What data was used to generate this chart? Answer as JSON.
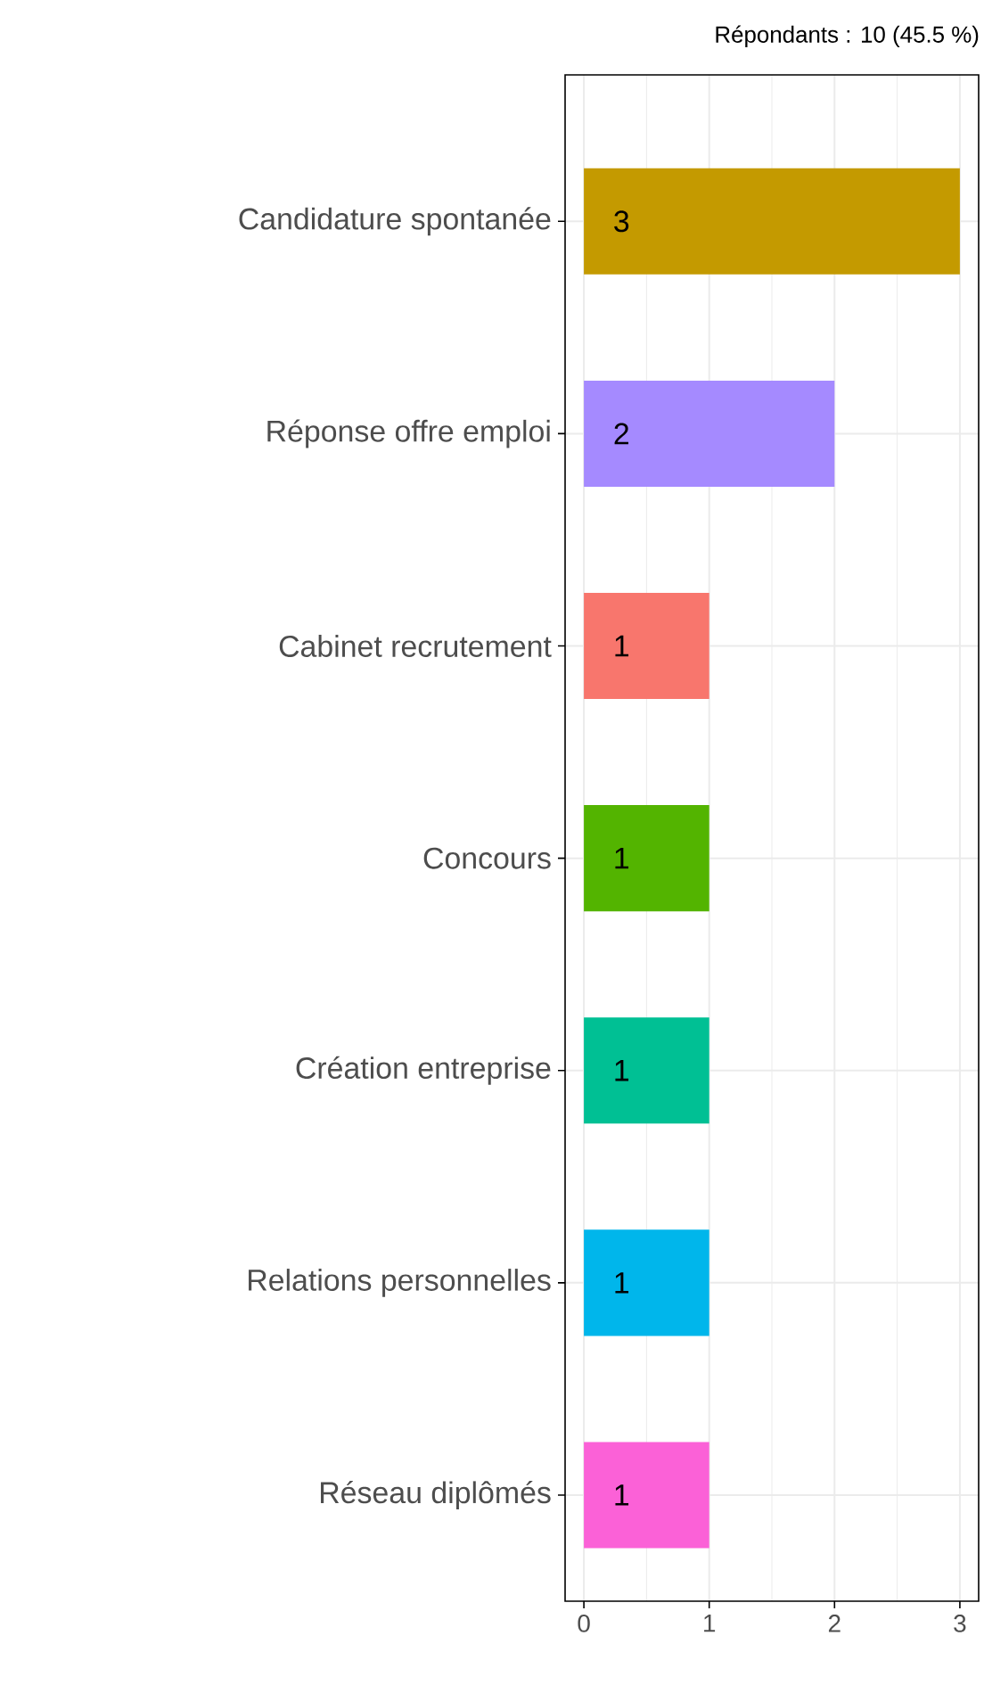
{
  "chart_data": {
    "type": "bar",
    "orientation": "horizontal",
    "title": "Répondants : 10 (45.5 %)",
    "categories": [
      "Candidature spontanée",
      "Réponse offre emploi",
      "Cabinet recrutement",
      "Concours",
      "Création entreprise",
      "Relations personnelles",
      "Réseau diplômés"
    ],
    "values": [
      3,
      2,
      1,
      1,
      1,
      1,
      1
    ],
    "colors": [
      "#c49a00",
      "#a58aff",
      "#f8766d",
      "#53b400",
      "#00c094",
      "#00b6eb",
      "#fb61d7"
    ],
    "xlim": [
      -0.15,
      3.15
    ],
    "xticks": [
      0,
      1,
      2,
      3
    ],
    "grid": true,
    "data_labels": true
  }
}
